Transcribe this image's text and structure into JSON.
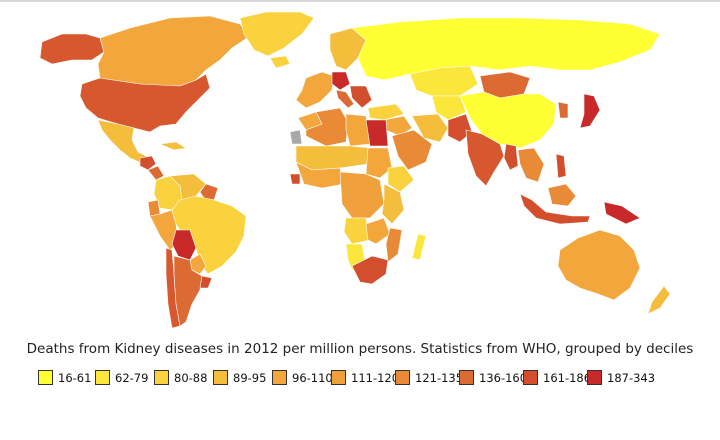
{
  "map": {
    "title": "Deaths from Kidney diseases in 2012 per million persons. Statistics from WHO, grouped by deciles",
    "ocean_color": "#ffffff",
    "no_data_color": "#a8a8a8",
    "legend": [
      {
        "label": "16-61",
        "color": "#ffff33"
      },
      {
        "label": "62-79",
        "color": "#fbe73c"
      },
      {
        "label": "80-88",
        "color": "#f9d23d"
      },
      {
        "label": "89-95",
        "color": "#f5bd3c"
      },
      {
        "label": "96-110",
        "color": "#f2a63b"
      },
      {
        "label": "111-120",
        "color": "#f0a13b"
      },
      {
        "label": "121-135",
        "color": "#e98a37"
      },
      {
        "label": "136-160",
        "color": "#db6a33"
      },
      {
        "label": "161-186",
        "color": "#d24e2c"
      },
      {
        "label": "187-343",
        "color": "#c72a28"
      }
    ],
    "regions": [
      {
        "name": "Canada",
        "color": "#f2a63b"
      },
      {
        "name": "Greenland",
        "color": "#f9d23d"
      },
      {
        "name": "United States",
        "color": "#d7582f"
      },
      {
        "name": "Alaska",
        "color": "#d7582f"
      },
      {
        "name": "Mexico",
        "color": "#f5bd3c"
      },
      {
        "name": "Guatemala",
        "color": "#d24e2c"
      },
      {
        "name": "Nicaragua",
        "color": "#db6a33"
      },
      {
        "name": "Colombia",
        "color": "#f9d23d"
      },
      {
        "name": "Venezuela",
        "color": "#f5bd3c"
      },
      {
        "name": "Guianas",
        "color": "#db6a33"
      },
      {
        "name": "Ecuador",
        "color": "#e98a37"
      },
      {
        "name": "Peru",
        "color": "#f2a63b"
      },
      {
        "name": "Brazil",
        "color": "#f9d23d"
      },
      {
        "name": "Bolivia",
        "color": "#c72a28"
      },
      {
        "name": "Paraguay",
        "color": "#f2a63b"
      },
      {
        "name": "Argentina",
        "color": "#db6a33"
      },
      {
        "name": "Chile",
        "color": "#d7582f"
      },
      {
        "name": "Uruguay",
        "color": "#d24e2c"
      },
      {
        "name": "Iceland",
        "color": "#f9d23d"
      },
      {
        "name": "Scandinavia",
        "color": "#f5bd3c"
      },
      {
        "name": "Western Europe",
        "color": "#f2a63b"
      },
      {
        "name": "Germany",
        "color": "#c72a28"
      },
      {
        "name": "Italy",
        "color": "#db6a33"
      },
      {
        "name": "Balkans",
        "color": "#d24e2c"
      },
      {
        "name": "Russia",
        "color": "#ffff33"
      },
      {
        "name": "Kazakhstan",
        "color": "#fbe73c"
      },
      {
        "name": "Mongolia",
        "color": "#db6a33"
      },
      {
        "name": "China",
        "color": "#ffff33"
      },
      {
        "name": "Korea",
        "color": "#db6a33"
      },
      {
        "name": "Japan",
        "color": "#c72a28"
      },
      {
        "name": "Turkey",
        "color": "#f9d23d"
      },
      {
        "name": "Middle East",
        "color": "#f2a63b"
      },
      {
        "name": "Saudi Arabia",
        "color": "#e98a37"
      },
      {
        "name": "Iran",
        "color": "#f5bd3c"
      },
      {
        "name": "Pakistan",
        "color": "#d24e2c"
      },
      {
        "name": "India",
        "color": "#d7582f"
      },
      {
        "name": "Central Asia",
        "color": "#fbe73c"
      },
      {
        "name": "Southeast Asia",
        "color": "#e98a37"
      },
      {
        "name": "Myanmar",
        "color": "#d24e2c"
      },
      {
        "name": "Indonesia",
        "color": "#d24e2c"
      },
      {
        "name": "Borneo",
        "color": "#e98a37"
      },
      {
        "name": "Philippines",
        "color": "#d24e2c"
      },
      {
        "name": "Papua New Guinea",
        "color": "#c72a28"
      },
      {
        "name": "Australia",
        "color": "#f2a63b"
      },
      {
        "name": "New Zealand",
        "color": "#f5bd3c"
      },
      {
        "name": "Morocco",
        "color": "#f2a63b"
      },
      {
        "name": "Algeria",
        "color": "#e98a37"
      },
      {
        "name": "Libya",
        "color": "#f2a63b"
      },
      {
        "name": "Egypt",
        "color": "#c72a28"
      },
      {
        "name": "Western Sahara",
        "color": "#a8a8a8"
      },
      {
        "name": "Sahel",
        "color": "#f5bd3c"
      },
      {
        "name": "West Africa",
        "color": "#f2a63b"
      },
      {
        "name": "Sierra Leone",
        "color": "#d24e2c"
      },
      {
        "name": "Sudan",
        "color": "#f2a63b"
      },
      {
        "name": "Ethiopia",
        "color": "#f9d23d"
      },
      {
        "name": "Central Africa",
        "color": "#f0a13b"
      },
      {
        "name": "East Africa",
        "color": "#f5bd3c"
      },
      {
        "name": "Angola",
        "color": "#f9d23d"
      },
      {
        "name": "Zambia",
        "color": "#f2a63b"
      },
      {
        "name": "Mozambique",
        "color": "#e98a37"
      },
      {
        "name": "Namibia",
        "color": "#fbe73c"
      },
      {
        "name": "South Africa",
        "color": "#d24e2c"
      },
      {
        "name": "Madagascar",
        "color": "#fbe73c"
      },
      {
        "name": "Cuba",
        "color": "#f5bd3c"
      }
    ]
  }
}
